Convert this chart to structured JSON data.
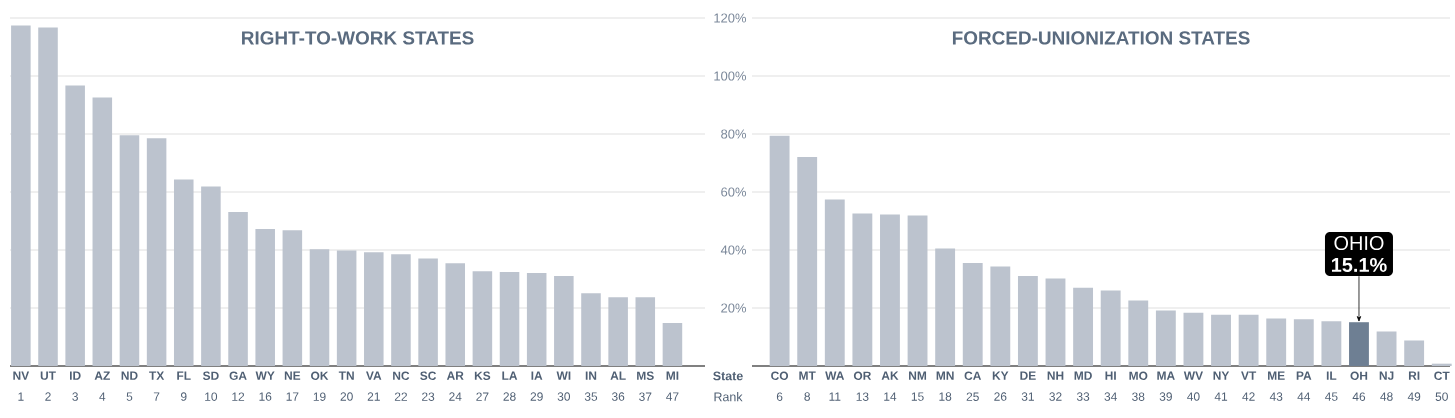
{
  "chart_data": [
    {
      "type": "bar",
      "title": "RIGHT-TO-WORK STATES",
      "categories": [
        "**NV** 1",
        "**UT** 2",
        "**ID** 3",
        "**AZ** 4",
        "**ND** 5",
        "**TX** 7",
        "**FL** 9",
        "**SD** 10",
        "**GA** 12",
        "**WY** 16",
        "**NE** 17",
        "**OK** 19",
        "**TN** 20",
        "**VA** 21",
        "**NC** 22",
        "**SC** 23",
        "**AR** 24",
        "**KS** 27",
        "**LA** 28",
        "**IA** 29",
        "**WI** 30",
        "**IN** 35",
        "**AL** 36",
        "**MS** 37",
        "**MI** 47"
      ],
      "values": [
        117.4,
        116.7,
        96.7,
        92.6,
        79.6,
        78.5,
        64.3,
        61.9,
        53.1,
        47.2,
        46.8,
        40.3,
        39.8,
        39.2,
        38.5,
        37.1,
        35.4,
        32.7,
        32.4,
        32.1,
        31.0,
        25.1,
        23.7,
        23.7,
        14.8
      ],
      "color": "#bcc3ce",
      "ylim": [
        0,
        120
      ],
      "yticks": [
        {
          "value": 20,
          "label": null
        },
        {
          "value": 40,
          "label": null
        },
        {
          "value": 60,
          "label": null
        },
        {
          "value": 80,
          "label": null
        },
        {
          "value": 100,
          "label": null
        },
        {
          "value": 120,
          "label": null
        }
      ],
      "grid": "y",
      "tick_labels": "x"
    },
    {
      "type": "bar",
      "title": "FORCED-UNIONIZATION STATES",
      "categories": [
        "**CO** 6",
        "**MT** 8",
        "**WA** 11",
        "**OR** 13",
        "**AK** 14",
        "**NM** 15",
        "**MN** 18",
        "**CA** 25",
        "**KY** 26",
        "**DE** 31",
        "**NH** 32",
        "**MD** 33",
        "**HI** 34",
        "**MO** 38",
        "**MA** 39",
        "**WV** 40",
        "**NY** 41",
        "**VT** 42",
        "**ME** 43",
        "**PA** 44",
        "**IL** 45",
        "**OH** 46",
        "**NJ** 48",
        "**RI** 49",
        "**CT** 50"
      ],
      "values": [
        79.4,
        72.1,
        57.4,
        52.6,
        52.2,
        51.9,
        40.5,
        35.5,
        34.3,
        31.0,
        30.2,
        27.0,
        26.0,
        22.6,
        19.1,
        18.4,
        17.7,
        17.7,
        16.4,
        16.1,
        15.4,
        15.1,
        11.9,
        8.8,
        0.8
      ],
      "colors": [
        "#bcc3ce",
        "#bcc3ce",
        "#bcc3ce",
        "#bcc3ce",
        "#bcc3ce",
        "#bcc3ce",
        "#bcc3ce",
        "#bcc3ce",
        "#bcc3ce",
        "#bcc3ce",
        "#bcc3ce",
        "#bcc3ce",
        "#bcc3ce",
        "#bcc3ce",
        "#bcc3ce",
        "#bcc3ce",
        "#bcc3ce",
        "#bcc3ce",
        "#bcc3ce",
        "#bcc3ce",
        "#bcc3ce",
        "#6e7f93",
        "#bcc3ce",
        "#bcc3ce",
        "#bcc3ce"
      ],
      "ylim": [
        0,
        120
      ],
      "yticks": [
        {
          "value": 20,
          "label": "20%"
        },
        {
          "value": 40,
          "label": "40%"
        },
        {
          "value": 60,
          "label": "60%"
        },
        {
          "value": 80,
          "label": "80%"
        },
        {
          "value": 100,
          "label": "100%"
        },
        {
          "value": 120,
          "label": "120%"
        }
      ],
      "grid": "y",
      "annotations": [
        "**State** Rank",
        {
          "text": "OHIO **15.1%**",
          "x": "**OH** 46",
          "y": 15.1
        }
      ]
    }
  ]
}
